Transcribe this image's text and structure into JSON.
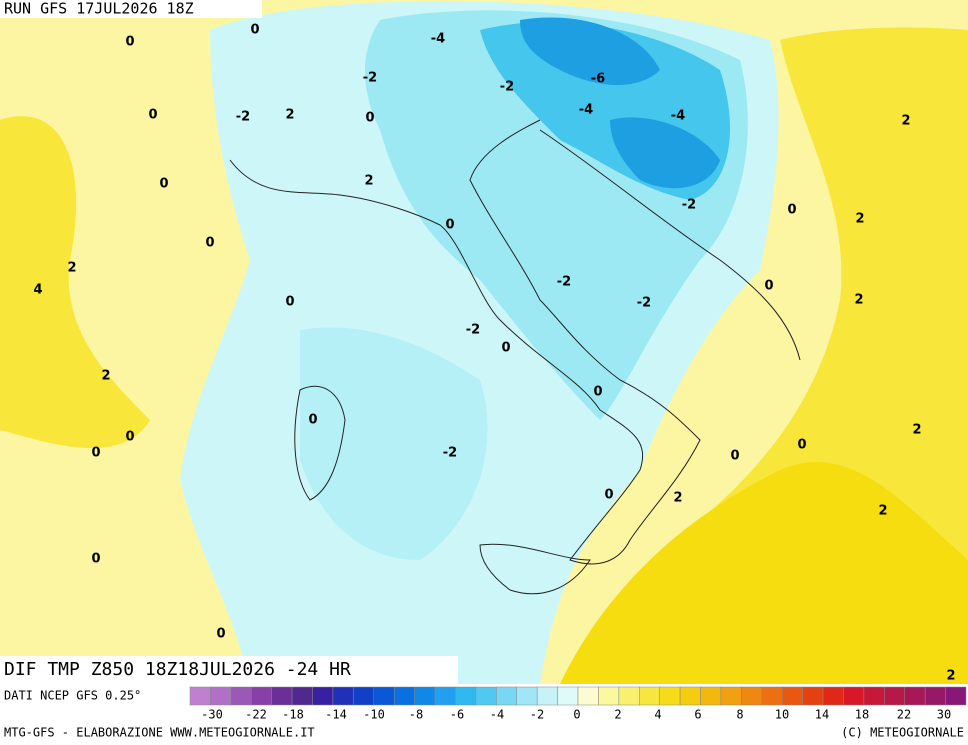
{
  "header": {
    "run": "RUN GFS 17JUL2026 18Z"
  },
  "map": {
    "contour_labels": [
      0,
      0,
      -4,
      -2,
      -6,
      -2,
      -4,
      -4,
      -2,
      2,
      0,
      0,
      2,
      0,
      2,
      -2,
      0,
      2,
      0,
      0,
      2,
      4,
      -2,
      0,
      -2,
      2,
      0,
      -2,
      0,
      2,
      0,
      0,
      2,
      0,
      0,
      0,
      -2,
      0,
      0,
      2,
      2,
      0,
      0,
      2
    ]
  },
  "footer": {
    "field": "DIF TMP Z850 18Z18JUL2026 -24 HR",
    "source": "DATI NCEP GFS 0.25°",
    "credit": "MTG-GFS - ELABORAZIONE WWW.METEOGIORNALE.IT",
    "copyright": "(C) METEOGIORNALE"
  },
  "colorbar": {
    "labels": [
      -30,
      -22,
      -18,
      -14,
      -10,
      -8,
      -6,
      -4,
      -2,
      0,
      2,
      4,
      6,
      8,
      10,
      14,
      18,
      22,
      30
    ]
  }
}
